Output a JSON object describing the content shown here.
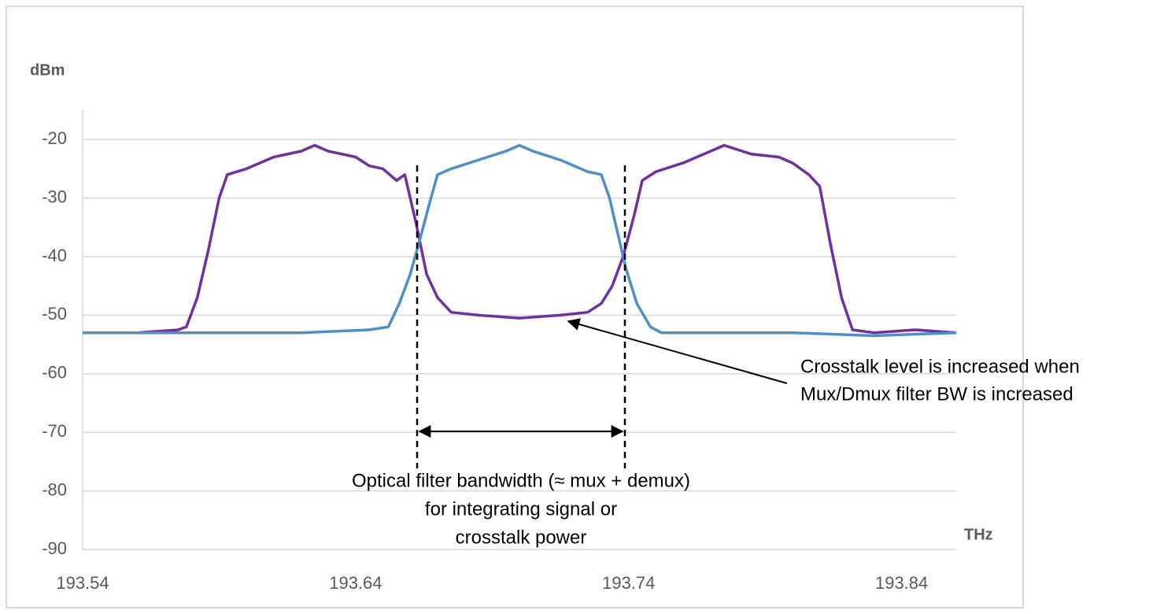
{
  "chart_data": {
    "type": "line",
    "y_label": "dBm",
    "x_label": "THz",
    "xlim": [
      193.54,
      193.86
    ],
    "xticks": [
      193.54,
      193.64,
      193.74,
      193.84
    ],
    "ylim": [
      -90,
      -15
    ],
    "yticks": [
      -20,
      -30,
      -40,
      -50,
      -60,
      -70,
      -80,
      -90
    ],
    "grid": true,
    "series": [
      {
        "color": "#7030a0",
        "x": [
          193.54,
          193.56,
          193.575,
          193.578,
          193.582,
          193.586,
          193.59,
          193.593,
          193.6,
          193.61,
          193.62,
          193.625,
          193.63,
          193.64,
          193.645,
          193.65,
          193.655,
          193.658,
          193.662,
          193.666,
          193.67,
          193.675,
          193.685,
          193.7,
          193.715,
          193.725,
          193.73,
          193.734,
          193.738,
          193.742,
          193.745,
          193.75,
          193.76,
          193.77,
          193.775,
          193.785,
          193.795,
          193.8,
          193.806,
          193.81,
          193.814,
          193.818,
          193.822,
          193.83,
          193.845,
          193.86
        ],
        "values": [
          -53,
          -53,
          -52.5,
          -52,
          -47,
          -39,
          -30,
          -26,
          -25,
          -23,
          -22,
          -21,
          -22,
          -23,
          -24.5,
          -25,
          -27,
          -26,
          -34,
          -43,
          -47,
          -49.5,
          -50,
          -50.5,
          -50,
          -49.5,
          -48,
          -45,
          -40,
          -33,
          -27,
          -25.5,
          -24,
          -22,
          -21,
          -22.5,
          -23,
          -24,
          -26,
          -28,
          -38,
          -47,
          -52.5,
          -53,
          -52.5,
          -53
        ]
      },
      {
        "color": "#4f8fc8",
        "x": [
          193.54,
          193.58,
          193.62,
          193.645,
          193.652,
          193.656,
          193.66,
          193.663,
          193.667,
          193.67,
          193.675,
          193.685,
          193.695,
          193.7,
          193.705,
          193.715,
          193.725,
          193.73,
          193.733,
          193.736,
          193.739,
          193.743,
          193.748,
          193.752,
          193.77,
          193.8,
          193.83,
          193.86
        ],
        "values": [
          -53,
          -53,
          -53,
          -52.5,
          -52,
          -48,
          -43,
          -38,
          -31,
          -26,
          -25,
          -23.5,
          -22,
          -21,
          -22,
          -23.5,
          -25.5,
          -26,
          -30,
          -36,
          -42,
          -48,
          -52,
          -53,
          -53,
          -53,
          -53.5,
          -53
        ]
      }
    ],
    "annotations": {
      "crosstalk": [
        "Crosstalk level is increased when",
        "Mux/Dmux filter BW is increased"
      ],
      "bandwidth": [
        "Optical filter bandwidth (≈ mux + demux)",
        "for integrating signal or",
        "crosstalk power"
      ]
    }
  }
}
